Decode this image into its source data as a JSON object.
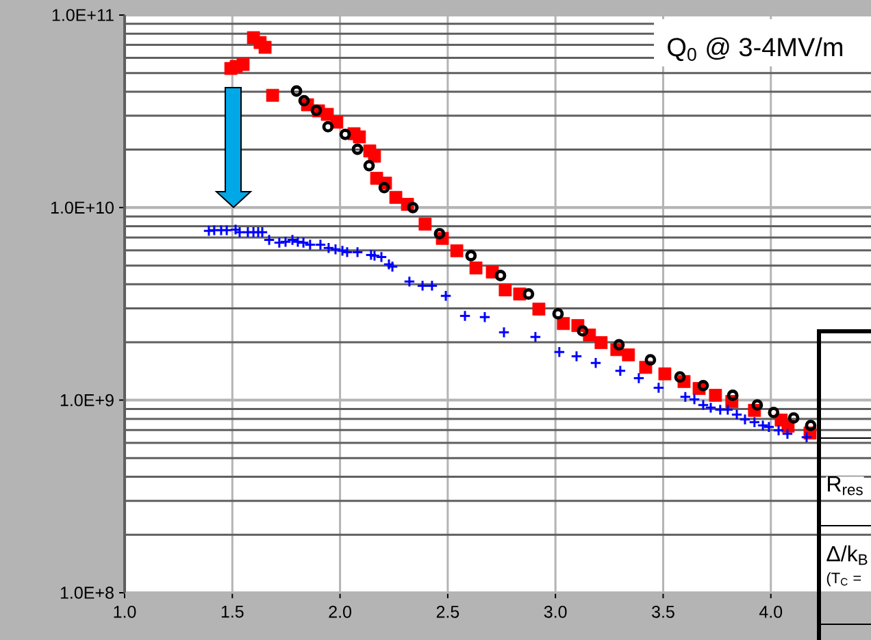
{
  "chart_data": {
    "type": "scatter",
    "title": "Q$_{0}$ @ 3-4MV/m",
    "annotations": [
      "R$_{res}$",
      "Δ/k$_{B}$",
      "(T$_{C}$ ="
    ],
    "xlim": [
      1,
      4.465
    ],
    "xticks": [
      {
        "value": 1.0,
        "label": "1.0"
      },
      {
        "value": 1.5,
        "label": "1.5"
      },
      {
        "value": 2.0,
        "label": "2.0"
      },
      {
        "value": 2.5,
        "label": "2.5"
      },
      {
        "value": 3.0,
        "label": "3.0"
      },
      {
        "value": 3.5,
        "label": "3.5"
      },
      {
        "value": 4.0,
        "label": "4.0"
      }
    ],
    "ylim": [
      100000000.0,
      100000000000.0
    ],
    "yticks": [
      {
        "value": 100000000.0,
        "label": "1.0E+8"
      },
      {
        "value": 1000000000.0,
        "label": "1.0E+9"
      },
      {
        "value": 10000000000.0,
        "label": "1.0E+10"
      },
      {
        "value": 100000000000.0,
        "label": "1.0E+11"
      }
    ],
    "log": "y",
    "grid": true,
    "series": [
      {
        "color": "#ff0000",
        "marker": "square",
        "x": [
          1.493,
          1.518,
          1.55,
          1.598,
          1.629,
          1.652,
          1.687,
          1.849,
          1.9,
          1.941,
          1.985,
          2.065,
          2.09,
          2.138,
          2.16,
          2.17,
          2.211,
          2.259,
          2.313,
          2.395,
          2.475,
          2.542,
          2.631,
          2.707,
          2.767,
          2.834,
          2.923,
          3.037,
          3.104,
          3.158,
          3.212,
          3.285,
          3.339,
          3.419,
          3.508,
          3.597,
          3.667,
          3.743,
          3.819,
          3.924,
          4.048,
          4.08,
          4.182
        ],
        "values": [
          52800000000.0,
          54100000000.0,
          55400000000.0,
          76300000000.0,
          72000000000.0,
          68000000000.0,
          38300000000.0,
          34200000000.0,
          31800000000.0,
          30500000000.0,
          27800000000.0,
          24200000000.0,
          23300000000.0,
          19700000000.0,
          18500000000.0,
          14200000000.0,
          13400000000.0,
          11300000000.0,
          10400000000.0,
          8210000000.0,
          6920000000.0,
          5970000000.0,
          4860000000.0,
          4630000000.0,
          3740000000.0,
          3560000000.0,
          2970000000.0,
          2500000000.0,
          2440000000.0,
          2180000000.0,
          1990000000.0,
          1830000000.0,
          1720000000.0,
          1480000000.0,
          1370000000.0,
          1250000000.0,
          1150000000.0,
          1060000000.0,
          984000000.0,
          885000000.0,
          788000000.0,
          733000000.0,
          675000000.0
        ]
      },
      {
        "color": "#000000",
        "marker": "circle",
        "x": [
          1.798,
          1.833,
          1.89,
          1.944,
          2.024,
          2.081,
          2.135,
          2.205,
          2.338,
          2.462,
          2.608,
          2.745,
          2.875,
          3.012,
          3.126,
          3.295,
          3.441,
          3.578,
          3.686,
          3.823,
          3.937,
          4.013,
          4.106,
          4.185
        ],
        "values": [
          40300000000.0,
          35900000000.0,
          32000000000.0,
          26300000000.0,
          24000000000.0,
          20100000000.0,
          16500000000.0,
          12700000000.0,
          10000000000.0,
          7320000000.0,
          5630000000.0,
          4440000000.0,
          3560000000.0,
          2810000000.0,
          2290000000.0,
          1940000000.0,
          1620000000.0,
          1320000000.0,
          1190000000.0,
          1060000000.0,
          944000000.0,
          863000000.0,
          808000000.0,
          739000000.0
        ]
      },
      {
        "color": "#0000ff",
        "marker": "cross",
        "x": [
          1.391,
          1.416,
          1.448,
          1.474,
          1.515,
          1.534,
          1.572,
          1.598,
          1.62,
          1.639,
          1.671,
          1.718,
          1.747,
          1.779,
          1.804,
          1.83,
          1.861,
          1.909,
          1.947,
          1.979,
          2.011,
          2.033,
          2.081,
          2.144,
          2.16,
          2.192,
          2.227,
          2.243,
          2.322,
          2.383,
          2.427,
          2.491,
          2.58,
          2.672,
          2.761,
          2.907,
          3.018,
          3.098,
          3.187,
          3.301,
          3.387,
          3.479,
          3.603,
          3.645,
          3.686,
          3.721,
          3.765,
          3.8,
          3.842,
          3.88,
          3.924,
          3.963,
          3.991,
          4.036,
          4.077,
          4.166
        ],
        "values": [
          7570000000.0,
          7630000000.0,
          7630000000.0,
          7630000000.0,
          7690000000.0,
          7450000000.0,
          7450000000.0,
          7450000000.0,
          7450000000.0,
          7450000000.0,
          6800000000.0,
          6580000000.0,
          6640000000.0,
          6800000000.0,
          6640000000.0,
          6580000000.0,
          6420000000.0,
          6420000000.0,
          6170000000.0,
          6070000000.0,
          5970000000.0,
          5870000000.0,
          5870000000.0,
          5680000000.0,
          5630000000.0,
          5540000000.0,
          5070000000.0,
          4940000000.0,
          4130000000.0,
          3930000000.0,
          3930000000.0,
          3480000000.0,
          2740000000.0,
          2700000000.0,
          2250000000.0,
          2130000000.0,
          1780000000.0,
          1690000000.0,
          1560000000.0,
          1420000000.0,
          1300000000.0,
          1160000000.0,
          1040000000.0,
          1010000000.0,
          944000000.0,
          914000000.0,
          892000000.0,
          892000000.0,
          842000000.0,
          795000000.0,
          769000000.0,
          739000000.0,
          726000000.0,
          697000000.0,
          669000000.0,
          642000000.0
        ]
      }
    ]
  }
}
